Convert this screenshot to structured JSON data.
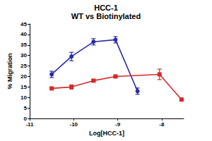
{
  "chart_data": {
    "type": "line",
    "title": "HCC-1",
    "subtitle": "WT vs Biotinylated",
    "x_label": "Log[HCC-1]",
    "y_label": "% Migration",
    "xlim": [
      -11,
      -7.5
    ],
    "xticks": [
      -11,
      -10,
      -9,
      -8
    ],
    "ylim": [
      0,
      45
    ],
    "yticks": [
      0,
      5,
      10,
      15,
      20,
      25,
      30,
      35,
      40,
      45
    ],
    "grid": false,
    "series": [
      {
        "color": "#2a2aa8",
        "marker": "circle",
        "x": [
          -10.5,
          -10.05,
          -9.55,
          -9.05,
          -8.55
        ],
        "values": [
          21,
          29.5,
          36.5,
          37.5,
          13
        ],
        "errors": [
          1.5,
          2,
          1.5,
          1.5,
          1.5
        ]
      },
      {
        "color": "#d42a2a",
        "marker": "square",
        "x": [
          -10.5,
          -10.05,
          -9.55,
          -9.05,
          -8.05,
          -7.55
        ],
        "values": [
          14.3,
          15,
          18,
          20,
          21,
          9
        ],
        "errors": [
          0.5,
          1,
          0.5,
          0.5,
          2.5,
          0.3
        ]
      }
    ]
  }
}
